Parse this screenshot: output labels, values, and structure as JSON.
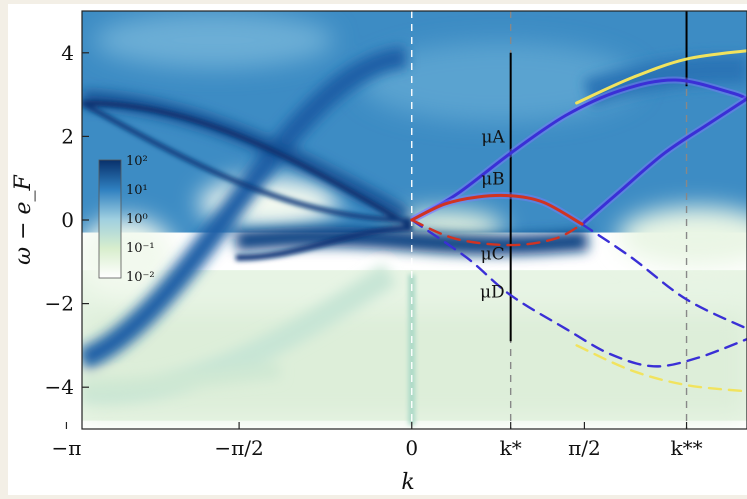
{
  "chart_data": {
    "type": "heatmap",
    "title": "",
    "xlabel": "k",
    "ylabel": "ω − e_F",
    "x_ticks": [
      {
        "value": -3.1416,
        "label": "−π"
      },
      {
        "value": -1.5708,
        "label": "−π/2"
      },
      {
        "value": 0,
        "label": "0"
      },
      {
        "value": 0.9,
        "label": "k*"
      },
      {
        "value": 1.5708,
        "label": "π/2"
      },
      {
        "value": 2.5,
        "label": "k**"
      },
      {
        "value": 3.1416,
        "label": "π"
      }
    ],
    "y_ticks": [
      {
        "value": 4,
        "label": "4"
      },
      {
        "value": 2,
        "label": "2"
      },
      {
        "value": 0,
        "label": "0"
      },
      {
        "value": -2,
        "label": "−2"
      },
      {
        "value": -4,
        "label": "−4"
      }
    ],
    "xlim": [
      -3.0,
      3.05
    ],
    "ylim": [
      -5,
      5
    ],
    "colorbar": {
      "scale": "log",
      "range": [
        0.01,
        100
      ],
      "ticks": [
        "10²",
        "10¹",
        "10⁰",
        "10⁻¹",
        "10⁻²"
      ],
      "colors": [
        "#08306b",
        "#2f80c0",
        "#9fcfe0",
        "#d8eecd",
        "#ffffff"
      ]
    },
    "labels": [
      {
        "name": "μA",
        "k": 0.9,
        "omega": 1.85
      },
      {
        "name": "μB",
        "k": 0.9,
        "omega": 0.85
      },
      {
        "name": "μC",
        "k": 0.9,
        "omega": -0.95
      },
      {
        "name": "μD",
        "k": 0.9,
        "omega": -1.85
      }
    ],
    "series": [
      {
        "color": "#3a2fd6",
        "style": "solid",
        "points": [
          [
            0,
            0
          ],
          [
            0.4,
            0.6
          ],
          [
            0.9,
            1.6
          ],
          [
            1.4,
            2.5
          ],
          [
            1.9,
            3.1
          ],
          [
            2.4,
            3.35
          ],
          [
            2.9,
            3.05
          ],
          [
            3.05,
            2.9
          ]
        ]
      },
      {
        "color": "#3a2fd6",
        "style": "solid",
        "points": [
          [
            1.55,
            -0.1
          ],
          [
            1.9,
            0.7
          ],
          [
            2.3,
            1.6
          ],
          [
            2.7,
            2.3
          ],
          [
            3.05,
            2.9
          ]
        ]
      },
      {
        "color": "#3a2fd6",
        "style": "dashed",
        "points": [
          [
            0,
            0
          ],
          [
            0.5,
            -0.9
          ],
          [
            0.9,
            -1.8
          ],
          [
            1.4,
            -2.6
          ],
          [
            1.8,
            -3.2
          ],
          [
            2.2,
            -3.5
          ],
          [
            2.6,
            -3.3
          ],
          [
            3.05,
            -2.85
          ]
        ]
      },
      {
        "color": "#3a2fd6",
        "style": "dashed",
        "points": [
          [
            1.55,
            -0.1
          ],
          [
            2.0,
            -0.9
          ],
          [
            2.5,
            -1.9
          ],
          [
            3.05,
            -2.6
          ]
        ]
      },
      {
        "color": "#d03322",
        "style": "solid",
        "points": [
          [
            0,
            0
          ],
          [
            0.3,
            0.38
          ],
          [
            0.6,
            0.55
          ],
          [
            0.9,
            0.58
          ],
          [
            1.2,
            0.42
          ],
          [
            1.55,
            -0.1
          ]
        ]
      },
      {
        "color": "#d03322",
        "style": "dashed",
        "points": [
          [
            0,
            0
          ],
          [
            0.4,
            -0.45
          ],
          [
            0.9,
            -0.6
          ],
          [
            1.3,
            -0.45
          ],
          [
            1.55,
            -0.1
          ]
        ]
      },
      {
        "color": "#f1e35e",
        "style": "solid",
        "points": [
          [
            1.5,
            2.8
          ],
          [
            2.0,
            3.4
          ],
          [
            2.5,
            3.85
          ],
          [
            3.05,
            4.05
          ]
        ]
      },
      {
        "color": "#f1e35e",
        "style": "dashed",
        "points": [
          [
            1.5,
            -3.0
          ],
          [
            2.0,
            -3.6
          ],
          [
            2.5,
            -3.95
          ],
          [
            3.05,
            -4.1
          ]
        ]
      }
    ],
    "vertical_lines": [
      {
        "k": 0,
        "style": "dashed",
        "color": "#ffffff"
      },
      {
        "k": 0.9,
        "style": "dashed",
        "color": "#888888"
      },
      {
        "k": 2.5,
        "style": "dashed",
        "color": "#888888"
      },
      {
        "k": 0.9,
        "style": "solid",
        "color": "#000000",
        "range": [
          -2.9,
          4.0
        ]
      },
      {
        "k": 2.5,
        "style": "solid",
        "color": "#000000",
        "range": [
          3.2,
          5.0
        ]
      }
    ]
  }
}
